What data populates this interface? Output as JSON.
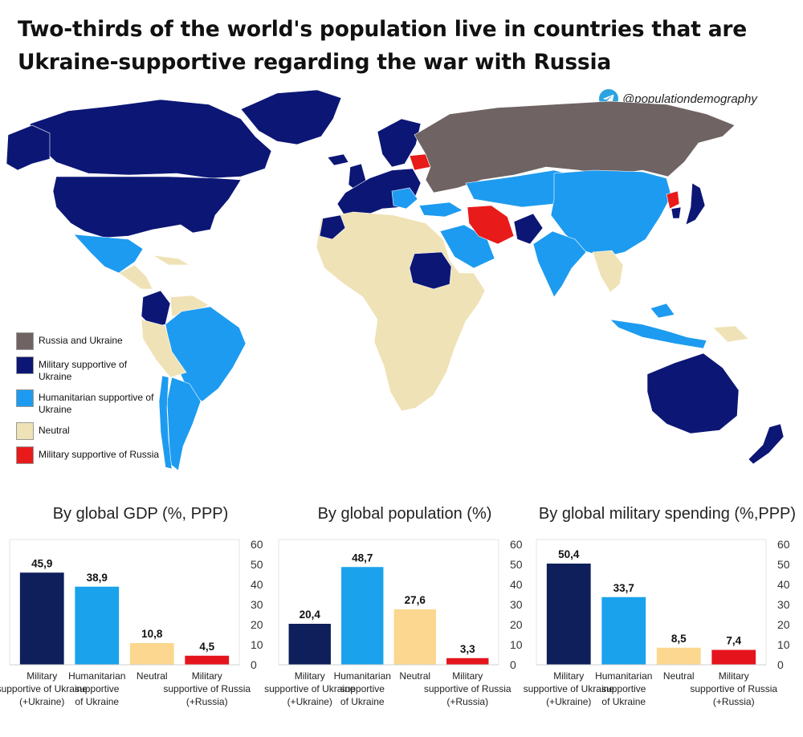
{
  "title": "Two-thirds of the world's population live in countries that are Ukraine-supportive regarding the war with Russia",
  "credit": "@populationdemography",
  "colors": {
    "russia_ukraine": "#6f6363",
    "military_ukraine": "#0c1675",
    "humanitarian_ukraine": "#1d9bf0",
    "neutral": "#efe2b6",
    "military_russia": "#e81a1a",
    "bar_military_ukraine": "#0e1f5b",
    "bar_humanitarian": "#1aa3ec",
    "bar_neutral": "#fbd790",
    "bar_military_russia": "#e5141c"
  },
  "legend": [
    {
      "label": "Russia and Ukraine",
      "color": "#6f6363"
    },
    {
      "label": "Military supportive of Ukraine",
      "color": "#0c1675"
    },
    {
      "label": "Humanitarian supportive of Ukraine",
      "color": "#1d9bf0"
    },
    {
      "label": "Neutral",
      "color": "#efe2b6"
    },
    {
      "label": "Military supportive of Russia",
      "color": "#e81a1a"
    }
  ],
  "chart_data": [
    {
      "type": "bar",
      "title": "By global GDP (%, PPP)",
      "categories": [
        "Military supportive of Ukraine (+Ukraine)",
        "Humanitarian supportive of Ukraine",
        "Neutral",
        "Military supportive of Russia (+Russia)"
      ],
      "values": [
        45.9,
        38.9,
        10.8,
        4.5
      ],
      "value_labels": [
        "45,9",
        "38,9",
        "10,8",
        "4,5"
      ],
      "ylim": [
        0,
        60
      ],
      "yticks": [
        0,
        10,
        20,
        30,
        40,
        50,
        60
      ],
      "grid": false
    },
    {
      "type": "bar",
      "title": "By global population (%)",
      "categories": [
        "Military supportive of Ukraine (+Ukraine)",
        "Humanitarian supportive of Ukraine",
        "Neutral",
        "Military supportive of Russia (+Russia)"
      ],
      "values": [
        20.4,
        48.7,
        27.6,
        3.3
      ],
      "value_labels": [
        "20,4",
        "48,7",
        "27,6",
        "3,3"
      ],
      "ylim": [
        0,
        60
      ],
      "yticks": [
        0,
        10,
        20,
        30,
        40,
        50,
        60
      ],
      "grid": false
    },
    {
      "type": "bar",
      "title": "By global military spending (%,PPP)",
      "categories": [
        "Military supportive of Ukraine (+Ukraine)",
        "Humanitarian supportive of Ukraine",
        "Neutral",
        "Military supportive of Russia (+Russia)"
      ],
      "values": [
        50.4,
        33.7,
        8.5,
        7.4
      ],
      "value_labels": [
        "50,4",
        "33,7",
        "8,5",
        "7,4"
      ],
      "ylim": [
        0,
        60
      ],
      "yticks": [
        0,
        10,
        20,
        30,
        40,
        50,
        60
      ],
      "grid": false
    }
  ],
  "category_lines": [
    [
      "Military",
      "supportive of Ukraine",
      "(+Ukraine)"
    ],
    [
      "Humanitarian",
      "supportive",
      "of Ukraine"
    ],
    [
      "Neutral"
    ],
    [
      "Military",
      "supportive of Russia",
      "(+Russia)"
    ]
  ]
}
